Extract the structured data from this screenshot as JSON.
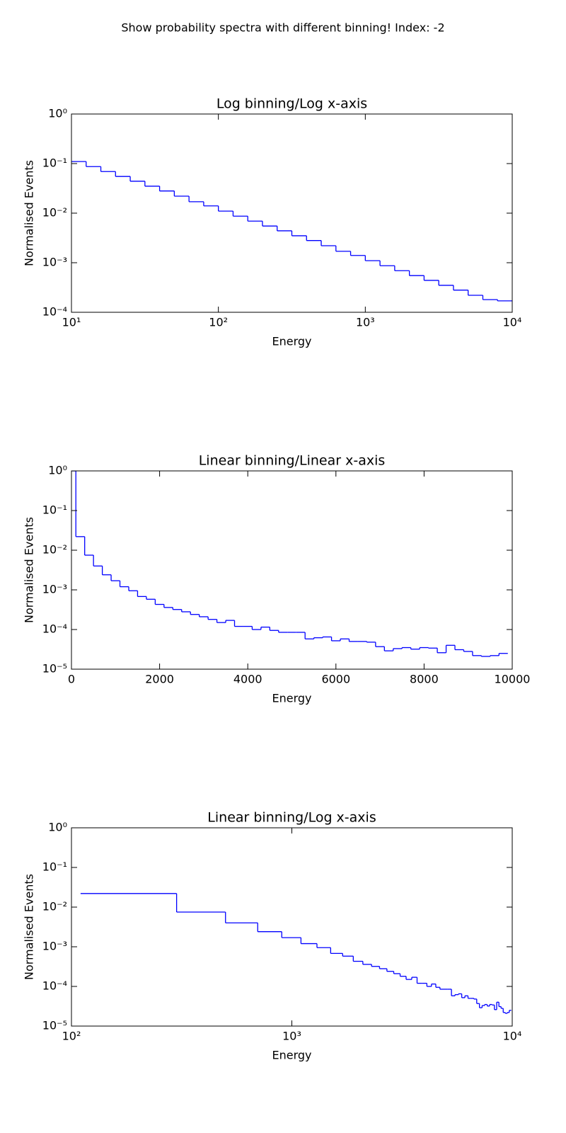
{
  "title": "Show probability spectra with different binning! Index: -2",
  "chart_data": [
    {
      "type": "histogram",
      "title": "Log binning/Log x-axis",
      "xlabel": "Energy",
      "ylabel": "Normalised Events",
      "color": "#0000ff",
      "xscale": "log",
      "yscale": "log",
      "xlim": [
        10,
        10000
      ],
      "ylim": [
        0.0001,
        1
      ],
      "xticks": [
        {
          "value": 10,
          "label": "10¹"
        },
        {
          "value": 100,
          "label": "10²"
        },
        {
          "value": 1000,
          "label": "10³"
        },
        {
          "value": 10000,
          "label": "10⁴"
        }
      ],
      "yticks": [
        {
          "value": 0.0001,
          "label": "10⁻⁴"
        },
        {
          "value": 0.001,
          "label": "10⁻³"
        },
        {
          "value": 0.01,
          "label": "10⁻²"
        },
        {
          "value": 0.1,
          "label": "10⁻¹"
        },
        {
          "value": 1,
          "label": "10⁰"
        }
      ],
      "bins": [
        10,
        12.59,
        15.85,
        19.95,
        25.12,
        31.62,
        39.81,
        50.12,
        63.1,
        79.43,
        100,
        125.9,
        158.5,
        199.5,
        251.2,
        316.2,
        398.1,
        501.2,
        631,
        794.3,
        1000,
        1259,
        1585,
        1995,
        2512,
        3162,
        3981,
        5012,
        6310,
        7943,
        10000
      ],
      "values": [
        0.11,
        0.087,
        0.069,
        0.055,
        0.044,
        0.035,
        0.028,
        0.022,
        0.017,
        0.014,
        0.011,
        0.0087,
        0.0069,
        0.0055,
        0.0044,
        0.0035,
        0.0028,
        0.0022,
        0.0017,
        0.0014,
        0.0011,
        0.00087,
        0.00069,
        0.00055,
        0.00044,
        0.00035,
        0.00028,
        0.00022,
        0.00018,
        0.00017
      ]
    },
    {
      "type": "histogram",
      "title": "Linear binning/Linear x-axis",
      "xlabel": "Energy",
      "ylabel": "Normalised Events",
      "color": "#0000ff",
      "xscale": "linear",
      "yscale": "log",
      "xlim": [
        0,
        10000
      ],
      "ylim": [
        1e-05,
        1
      ],
      "xticks": [
        0,
        2000,
        4000,
        6000,
        8000,
        10000
      ],
      "yticks": [
        {
          "value": 1e-05,
          "label": "10⁻⁵"
        },
        {
          "value": 0.0001,
          "label": "10⁻⁴"
        },
        {
          "value": 0.001,
          "label": "10⁻³"
        },
        {
          "value": 0.01,
          "label": "10⁻²"
        },
        {
          "value": 0.1,
          "label": "10⁻¹"
        },
        {
          "value": 1,
          "label": "10⁰"
        }
      ],
      "bins": [
        0,
        100,
        300,
        500,
        700,
        900,
        1100,
        1300,
        1500,
        1700,
        1900,
        2100,
        2300,
        2500,
        2700,
        2900,
        3100,
        3300,
        3500,
        3700,
        3900,
        4100,
        4300,
        4500,
        4700,
        4900,
        5100,
        5300,
        5500,
        5700,
        5900,
        6100,
        6300,
        6500,
        6700,
        6900,
        7100,
        7300,
        7500,
        7700,
        7900,
        8100,
        8300,
        8500,
        8700,
        8900,
        9100,
        9300,
        9500,
        9700,
        9900
      ],
      "values": [
        1,
        0.022,
        0.0075,
        0.004,
        0.0024,
        0.0017,
        0.0012,
        0.00095,
        0.00068,
        0.00058,
        0.00043,
        0.00036,
        0.00032,
        0.00028,
        0.00024,
        0.00021,
        0.00018,
        0.00015,
        0.00017,
        0.00012,
        0.00012,
        0.0001,
        0.000115,
        9.5e-05,
        8.5e-05,
        8.5e-05,
        8.5e-05,
        5.8e-05,
        6.2e-05,
        6.5e-05,
        5.2e-05,
        5.8e-05,
        5e-05,
        5e-05,
        4.8e-05,
        3.7e-05,
        2.9e-05,
        3.3e-05,
        3.5e-05,
        3.2e-05,
        3.5e-05,
        3.4e-05,
        2.6e-05,
        4e-05,
        3.1e-05,
        2.8e-05,
        2.2e-05,
        2.1e-05,
        2.2e-05,
        2.5e-05
      ]
    },
    {
      "type": "histogram",
      "title": "Linear binning/Log x-axis",
      "xlabel": "Energy",
      "ylabel": "Normalised Events",
      "color": "#0000ff",
      "xscale": "log",
      "yscale": "log",
      "xlim": [
        100,
        10000
      ],
      "ylim": [
        1e-05,
        1
      ],
      "xticks": [
        {
          "value": 100,
          "label": "10²"
        },
        {
          "value": 1000,
          "label": "10³"
        },
        {
          "value": 10000,
          "label": "10⁴"
        }
      ],
      "yticks": [
        {
          "value": 1e-05,
          "label": "10⁻⁵"
        },
        {
          "value": 0.0001,
          "label": "10⁻⁴"
        },
        {
          "value": 0.001,
          "label": "10⁻³"
        },
        {
          "value": 0.01,
          "label": "10⁻²"
        },
        {
          "value": 0.1,
          "label": "10⁻¹"
        },
        {
          "value": 1,
          "label": "10⁰"
        }
      ],
      "bins": [
        110,
        300,
        500,
        700,
        900,
        1100,
        1300,
        1500,
        1700,
        1900,
        2100,
        2300,
        2500,
        2700,
        2900,
        3100,
        3300,
        3500,
        3700,
        3900,
        4100,
        4300,
        4500,
        4700,
        4900,
        5100,
        5300,
        5500,
        5700,
        5900,
        6100,
        6300,
        6500,
        6700,
        6900,
        7100,
        7300,
        7500,
        7700,
        7900,
        8100,
        8300,
        8500,
        8700,
        8900,
        9100,
        9300,
        9500,
        9700,
        9900
      ],
      "values": [
        0.022,
        0.0075,
        0.004,
        0.0024,
        0.0017,
        0.0012,
        0.00095,
        0.00068,
        0.00058,
        0.00043,
        0.00036,
        0.00032,
        0.00028,
        0.00024,
        0.00021,
        0.00018,
        0.00015,
        0.00017,
        0.00012,
        0.00012,
        0.0001,
        0.000115,
        9.5e-05,
        8.5e-05,
        8.5e-05,
        8.5e-05,
        5.8e-05,
        6.2e-05,
        6.5e-05,
        5.2e-05,
        5.8e-05,
        5e-05,
        5e-05,
        4.8e-05,
        3.7e-05,
        2.9e-05,
        3.3e-05,
        3.5e-05,
        3.2e-05,
        3.5e-05,
        3.4e-05,
        2.6e-05,
        4e-05,
        3.1e-05,
        2.8e-05,
        2.2e-05,
        2.1e-05,
        2.2e-05,
        2.5e-05
      ]
    }
  ]
}
